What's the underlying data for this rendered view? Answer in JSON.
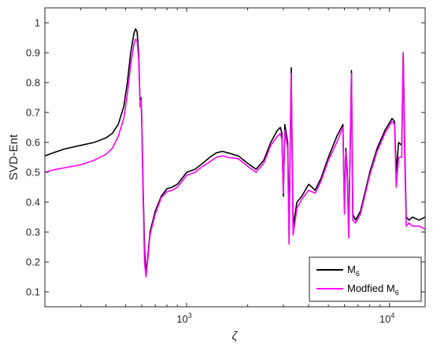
{
  "chart_data": {
    "type": "line",
    "title": "",
    "xlabel": "ζ",
    "ylabel": "SVD-Ent",
    "xscale": "log",
    "xlim": [
      200,
      15000
    ],
    "ylim": [
      0.05,
      1.05
    ],
    "xticks": [
      {
        "value": 1000,
        "base": "10",
        "exp": "3"
      },
      {
        "value": 10000,
        "base": "10",
        "exp": "4"
      }
    ],
    "yticks": [
      0.1,
      0.2,
      0.3,
      0.4,
      0.5,
      0.6,
      0.7,
      0.8,
      0.9,
      1
    ],
    "grid": false,
    "legend_position": "bottom-right",
    "series": [
      {
        "name": "M6",
        "name_base": "M",
        "name_sub": "6",
        "color": "#000000",
        "points": [
          [
            200,
            0.555
          ],
          [
            220,
            0.565
          ],
          [
            250,
            0.578
          ],
          [
            300,
            0.59
          ],
          [
            350,
            0.6
          ],
          [
            400,
            0.615
          ],
          [
            430,
            0.63
          ],
          [
            460,
            0.66
          ],
          [
            490,
            0.72
          ],
          [
            510,
            0.8
          ],
          [
            530,
            0.9
          ],
          [
            550,
            0.965
          ],
          [
            560,
            0.98
          ],
          [
            570,
            0.97
          ],
          [
            580,
            0.9
          ],
          [
            590,
            0.72
          ],
          [
            595,
            0.75
          ],
          [
            600,
            0.7
          ],
          [
            610,
            0.45
          ],
          [
            620,
            0.25
          ],
          [
            630,
            0.16
          ],
          [
            640,
            0.2
          ],
          [
            660,
            0.3
          ],
          [
            700,
            0.37
          ],
          [
            750,
            0.42
          ],
          [
            800,
            0.445
          ],
          [
            850,
            0.45
          ],
          [
            900,
            0.46
          ],
          [
            950,
            0.48
          ],
          [
            1000,
            0.5
          ],
          [
            1100,
            0.51
          ],
          [
            1200,
            0.53
          ],
          [
            1300,
            0.55
          ],
          [
            1400,
            0.565
          ],
          [
            1500,
            0.57
          ],
          [
            1600,
            0.565
          ],
          [
            1800,
            0.555
          ],
          [
            2000,
            0.53
          ],
          [
            2200,
            0.51
          ],
          [
            2400,
            0.54
          ],
          [
            2600,
            0.6
          ],
          [
            2800,
            0.64
          ],
          [
            2900,
            0.65
          ],
          [
            2950,
            0.63
          ],
          [
            3000,
            0.42
          ],
          [
            3050,
            0.66
          ],
          [
            3150,
            0.6
          ],
          [
            3200,
            0.3
          ],
          [
            3280,
            0.85
          ],
          [
            3350,
            0.32
          ],
          [
            3500,
            0.4
          ],
          [
            3700,
            0.42
          ],
          [
            4000,
            0.46
          ],
          [
            4300,
            0.44
          ],
          [
            4600,
            0.48
          ],
          [
            5000,
            0.55
          ],
          [
            5500,
            0.62
          ],
          [
            5900,
            0.66
          ],
          [
            6000,
            0.38
          ],
          [
            6100,
            0.58
          ],
          [
            6200,
            0.5
          ],
          [
            6300,
            0.3
          ],
          [
            6500,
            0.84
          ],
          [
            6600,
            0.36
          ],
          [
            6800,
            0.34
          ],
          [
            7200,
            0.37
          ],
          [
            8000,
            0.5
          ],
          [
            8700,
            0.58
          ],
          [
            9500,
            0.64
          ],
          [
            10300,
            0.68
          ],
          [
            10600,
            0.67
          ],
          [
            10800,
            0.5
          ],
          [
            11100,
            0.6
          ],
          [
            11500,
            0.59
          ],
          [
            11700,
            0.9
          ],
          [
            11900,
            0.59
          ],
          [
            12100,
            0.35
          ],
          [
            12500,
            0.34
          ],
          [
            13000,
            0.35
          ],
          [
            14000,
            0.34
          ],
          [
            15000,
            0.35
          ]
        ]
      },
      {
        "name": "Modfied M6",
        "name_base": "Modfied M",
        "name_sub": "6",
        "color": "#ff00ff",
        "points": [
          [
            200,
            0.5
          ],
          [
            220,
            0.508
          ],
          [
            250,
            0.515
          ],
          [
            300,
            0.525
          ],
          [
            350,
            0.54
          ],
          [
            400,
            0.56
          ],
          [
            430,
            0.58
          ],
          [
            460,
            0.62
          ],
          [
            490,
            0.68
          ],
          [
            510,
            0.76
          ],
          [
            530,
            0.86
          ],
          [
            550,
            0.93
          ],
          [
            560,
            0.945
          ],
          [
            570,
            0.94
          ],
          [
            580,
            0.88
          ],
          [
            590,
            0.72
          ],
          [
            595,
            0.74
          ],
          [
            600,
            0.68
          ],
          [
            610,
            0.42
          ],
          [
            620,
            0.2
          ],
          [
            630,
            0.15
          ],
          [
            640,
            0.19
          ],
          [
            660,
            0.29
          ],
          [
            700,
            0.36
          ],
          [
            750,
            0.415
          ],
          [
            800,
            0.435
          ],
          [
            850,
            0.44
          ],
          [
            900,
            0.45
          ],
          [
            950,
            0.47
          ],
          [
            1000,
            0.49
          ],
          [
            1100,
            0.5
          ],
          [
            1200,
            0.52
          ],
          [
            1300,
            0.535
          ],
          [
            1400,
            0.55
          ],
          [
            1500,
            0.555
          ],
          [
            1600,
            0.55
          ],
          [
            1800,
            0.545
          ],
          [
            2000,
            0.52
          ],
          [
            2200,
            0.5
          ],
          [
            2400,
            0.53
          ],
          [
            2600,
            0.59
          ],
          [
            2800,
            0.62
          ],
          [
            2900,
            0.63
          ],
          [
            2950,
            0.61
          ],
          [
            3000,
            0.43
          ],
          [
            3050,
            0.64
          ],
          [
            3150,
            0.58
          ],
          [
            3200,
            0.26
          ],
          [
            3280,
            0.83
          ],
          [
            3350,
            0.29
          ],
          [
            3500,
            0.38
          ],
          [
            3700,
            0.41
          ],
          [
            4000,
            0.44
          ],
          [
            4300,
            0.43
          ],
          [
            4600,
            0.47
          ],
          [
            5000,
            0.54
          ],
          [
            5500,
            0.6
          ],
          [
            5900,
            0.65
          ],
          [
            6000,
            0.36
          ],
          [
            6100,
            0.57
          ],
          [
            6200,
            0.48
          ],
          [
            6300,
            0.28
          ],
          [
            6500,
            0.83
          ],
          [
            6600,
            0.34
          ],
          [
            6800,
            0.33
          ],
          [
            7200,
            0.36
          ],
          [
            8000,
            0.49
          ],
          [
            8700,
            0.57
          ],
          [
            9500,
            0.63
          ],
          [
            10300,
            0.67
          ],
          [
            10600,
            0.66
          ],
          [
            10800,
            0.45
          ],
          [
            11100,
            0.55
          ],
          [
            11500,
            0.55
          ],
          [
            11700,
            0.9
          ],
          [
            11900,
            0.55
          ],
          [
            12100,
            0.32
          ],
          [
            12500,
            0.33
          ],
          [
            13000,
            0.32
          ],
          [
            14000,
            0.32
          ],
          [
            15000,
            0.31
          ]
        ]
      }
    ]
  }
}
